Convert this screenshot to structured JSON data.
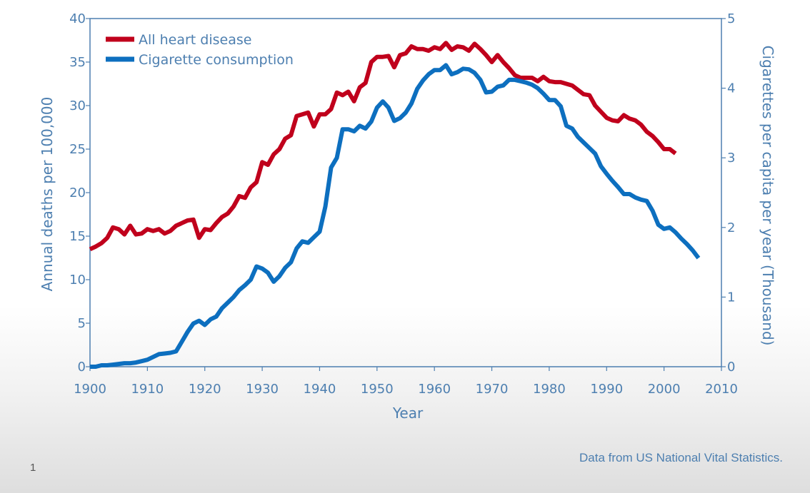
{
  "slide_number": "1",
  "source_note": "Data from US National Vital Statistics.",
  "colors": {
    "heart": "#c0001c",
    "cigarette": "#0d6fbf",
    "axis": "#4d7fb0"
  },
  "chart_data": {
    "type": "line",
    "xlabel": "Year",
    "ylabel_left": "Annual deaths per 100,000",
    "ylabel_right": "Cigarettes per capita per year (Thousand)",
    "xlim": [
      1900,
      2010
    ],
    "ylim_left": [
      0,
      40
    ],
    "ylim_right": [
      0,
      5
    ],
    "x_ticks": [
      "1900",
      "1910",
      "1920",
      "1930",
      "1940",
      "1950",
      "1960",
      "1970",
      "1980",
      "1990",
      "2000",
      "2010"
    ],
    "y_left_ticks": [
      "0",
      "5",
      "10",
      "15",
      "20",
      "25",
      "30",
      "35",
      "40"
    ],
    "y_right_ticks": [
      "0",
      "1",
      "2",
      "3",
      "4",
      "5"
    ],
    "legend_position": "top-left",
    "series": [
      {
        "name": "All heart disease",
        "axis": "left",
        "color": "#c0001c",
        "x": [
          1900,
          1901,
          1902,
          1903,
          1904,
          1905,
          1906,
          1907,
          1908,
          1909,
          1910,
          1911,
          1912,
          1913,
          1914,
          1915,
          1916,
          1917,
          1918,
          1919,
          1920,
          1921,
          1922,
          1923,
          1924,
          1925,
          1926,
          1927,
          1928,
          1929,
          1930,
          1931,
          1932,
          1933,
          1934,
          1935,
          1936,
          1937,
          1938,
          1939,
          1940,
          1941,
          1942,
          1943,
          1944,
          1945,
          1946,
          1947,
          1948,
          1949,
          1950,
          1951,
          1952,
          1953,
          1954,
          1955,
          1956,
          1957,
          1958,
          1959,
          1960,
          1961,
          1962,
          1963,
          1964,
          1965,
          1966,
          1967,
          1968,
          1969,
          1970,
          1971,
          1972,
          1973,
          1974,
          1975,
          1976,
          1977,
          1978,
          1979,
          1980,
          1981,
          1982,
          1983,
          1984,
          1985,
          1986,
          1987,
          1988,
          1989,
          1990,
          1991,
          1992,
          1993,
          1994,
          1995,
          1996,
          1997,
          1998,
          1999,
          2000,
          2001,
          2002
        ],
        "values": [
          13.5,
          13.8,
          14.2,
          14.8,
          16.0,
          15.8,
          15.2,
          16.2,
          15.2,
          15.3,
          15.8,
          15.6,
          15.8,
          15.3,
          15.6,
          16.2,
          16.5,
          16.8,
          16.9,
          14.8,
          15.8,
          15.7,
          16.5,
          17.2,
          17.6,
          18.4,
          19.6,
          19.4,
          20.6,
          21.2,
          23.5,
          23.2,
          24.4,
          25.0,
          26.2,
          26.6,
          28.8,
          29.0,
          29.2,
          27.6,
          29.0,
          29.0,
          29.6,
          31.5,
          31.2,
          31.6,
          30.5,
          32.1,
          32.6,
          35.0,
          35.6,
          35.6,
          35.7,
          34.4,
          35.8,
          36.0,
          36.8,
          36.5,
          36.5,
          36.3,
          36.7,
          36.5,
          37.2,
          36.4,
          36.8,
          36.7,
          36.3,
          37.1,
          36.5,
          35.8,
          35.0,
          35.8,
          35.0,
          34.3,
          33.5,
          33.2,
          33.2,
          33.2,
          32.8,
          33.3,
          32.8,
          32.7,
          32.7,
          32.5,
          32.3,
          31.8,
          31.3,
          31.2,
          30.0,
          29.3,
          28.6,
          28.3,
          28.2,
          28.9,
          28.5,
          28.3,
          27.8,
          27.0,
          26.5,
          25.8,
          25.0,
          25.0,
          24.5
        ]
      },
      {
        "name": "Cigarette consumption",
        "axis": "right",
        "color": "#0d6fbf",
        "x": [
          1900,
          1901,
          1902,
          1903,
          1904,
          1905,
          1906,
          1907,
          1908,
          1909,
          1910,
          1911,
          1912,
          1913,
          1914,
          1915,
          1916,
          1917,
          1918,
          1919,
          1920,
          1921,
          1922,
          1923,
          1924,
          1925,
          1926,
          1927,
          1928,
          1929,
          1930,
          1931,
          1932,
          1933,
          1934,
          1935,
          1936,
          1937,
          1938,
          1939,
          1940,
          1941,
          1942,
          1943,
          1944,
          1945,
          1946,
          1947,
          1948,
          1949,
          1950,
          1951,
          1952,
          1953,
          1954,
          1955,
          1956,
          1957,
          1958,
          1959,
          1960,
          1961,
          1962,
          1963,
          1964,
          1965,
          1966,
          1967,
          1968,
          1969,
          1970,
          1971,
          1972,
          1973,
          1974,
          1975,
          1976,
          1977,
          1978,
          1979,
          1980,
          1981,
          1982,
          1983,
          1984,
          1985,
          1986,
          1987,
          1988,
          1989,
          1990,
          1991,
          1992,
          1993,
          1994,
          1995,
          1996,
          1997,
          1998,
          1999,
          2000,
          2001,
          2002,
          2003,
          2004,
          2005,
          2006
        ],
        "values": [
          0.0,
          0.0,
          0.02,
          0.02,
          0.03,
          0.04,
          0.05,
          0.05,
          0.06,
          0.08,
          0.1,
          0.14,
          0.18,
          0.19,
          0.2,
          0.22,
          0.36,
          0.5,
          0.62,
          0.66,
          0.6,
          0.68,
          0.72,
          0.84,
          0.92,
          1.0,
          1.1,
          1.17,
          1.25,
          1.44,
          1.41,
          1.35,
          1.22,
          1.3,
          1.42,
          1.5,
          1.7,
          1.8,
          1.78,
          1.86,
          1.94,
          2.3,
          2.86,
          3.0,
          3.41,
          3.41,
          3.38,
          3.46,
          3.42,
          3.52,
          3.72,
          3.81,
          3.72,
          3.53,
          3.57,
          3.65,
          3.78,
          3.99,
          4.11,
          4.2,
          4.26,
          4.26,
          4.33,
          4.2,
          4.23,
          4.28,
          4.27,
          4.22,
          4.12,
          3.94,
          3.95,
          4.02,
          4.04,
          4.12,
          4.12,
          4.1,
          4.08,
          4.05,
          4.0,
          3.92,
          3.83,
          3.83,
          3.74,
          3.46,
          3.42,
          3.3,
          3.22,
          3.14,
          3.06,
          2.88,
          2.77,
          2.67,
          2.58,
          2.48,
          2.48,
          2.43,
          2.4,
          2.38,
          2.24,
          2.04,
          1.98,
          2.0,
          1.93,
          1.84,
          1.76,
          1.67,
          1.56
        ]
      }
    ]
  }
}
